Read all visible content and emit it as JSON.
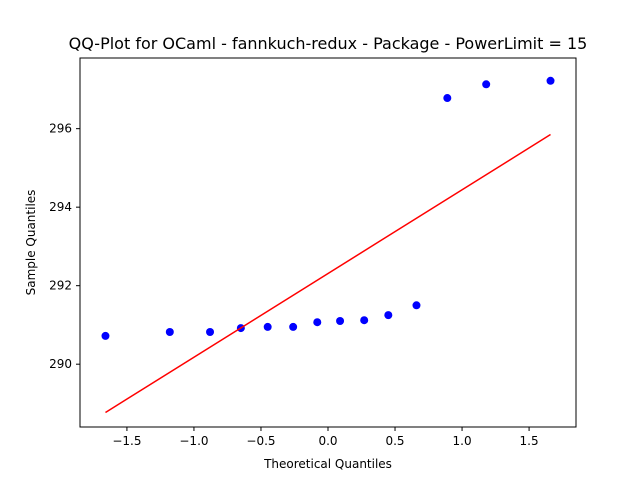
{
  "chart_data": {
    "type": "scatter",
    "title": "QQ-Plot for OCaml - fannkuch-redux - Package - PowerLimit = 15",
    "xlabel": "Theoretical Quantiles",
    "ylabel": "Sample Quantiles",
    "xlim": [
      -1.85,
      1.85
    ],
    "ylim": [
      288.4,
      297.8
    ],
    "xticks": [
      -1.5,
      -1.0,
      -0.5,
      0.0,
      0.5,
      1.0,
      1.5
    ],
    "xtick_labels": [
      "−1.5",
      "−1.0",
      "−0.5",
      "0.0",
      "0.5",
      "1.0",
      "1.5"
    ],
    "yticks": [
      290,
      292,
      294,
      296
    ],
    "ytick_labels": [
      "290",
      "292",
      "294",
      "296"
    ],
    "grid": false,
    "series": [
      {
        "kind": "points",
        "color": "#0000ff",
        "x": [
          -1.66,
          -1.18,
          -0.88,
          -0.65,
          -0.45,
          -0.26,
          -0.08,
          0.09,
          0.27,
          0.45,
          0.66,
          0.89,
          1.18,
          1.66
        ],
        "y": [
          290.72,
          290.82,
          290.82,
          290.92,
          290.95,
          290.95,
          291.07,
          291.1,
          291.12,
          291.25,
          291.5,
          296.78,
          297.13,
          297.22
        ]
      },
      {
        "kind": "line",
        "color": "#ff0000",
        "x": [
          -1.66,
          1.66
        ],
        "y": [
          288.77,
          295.85
        ]
      }
    ]
  }
}
